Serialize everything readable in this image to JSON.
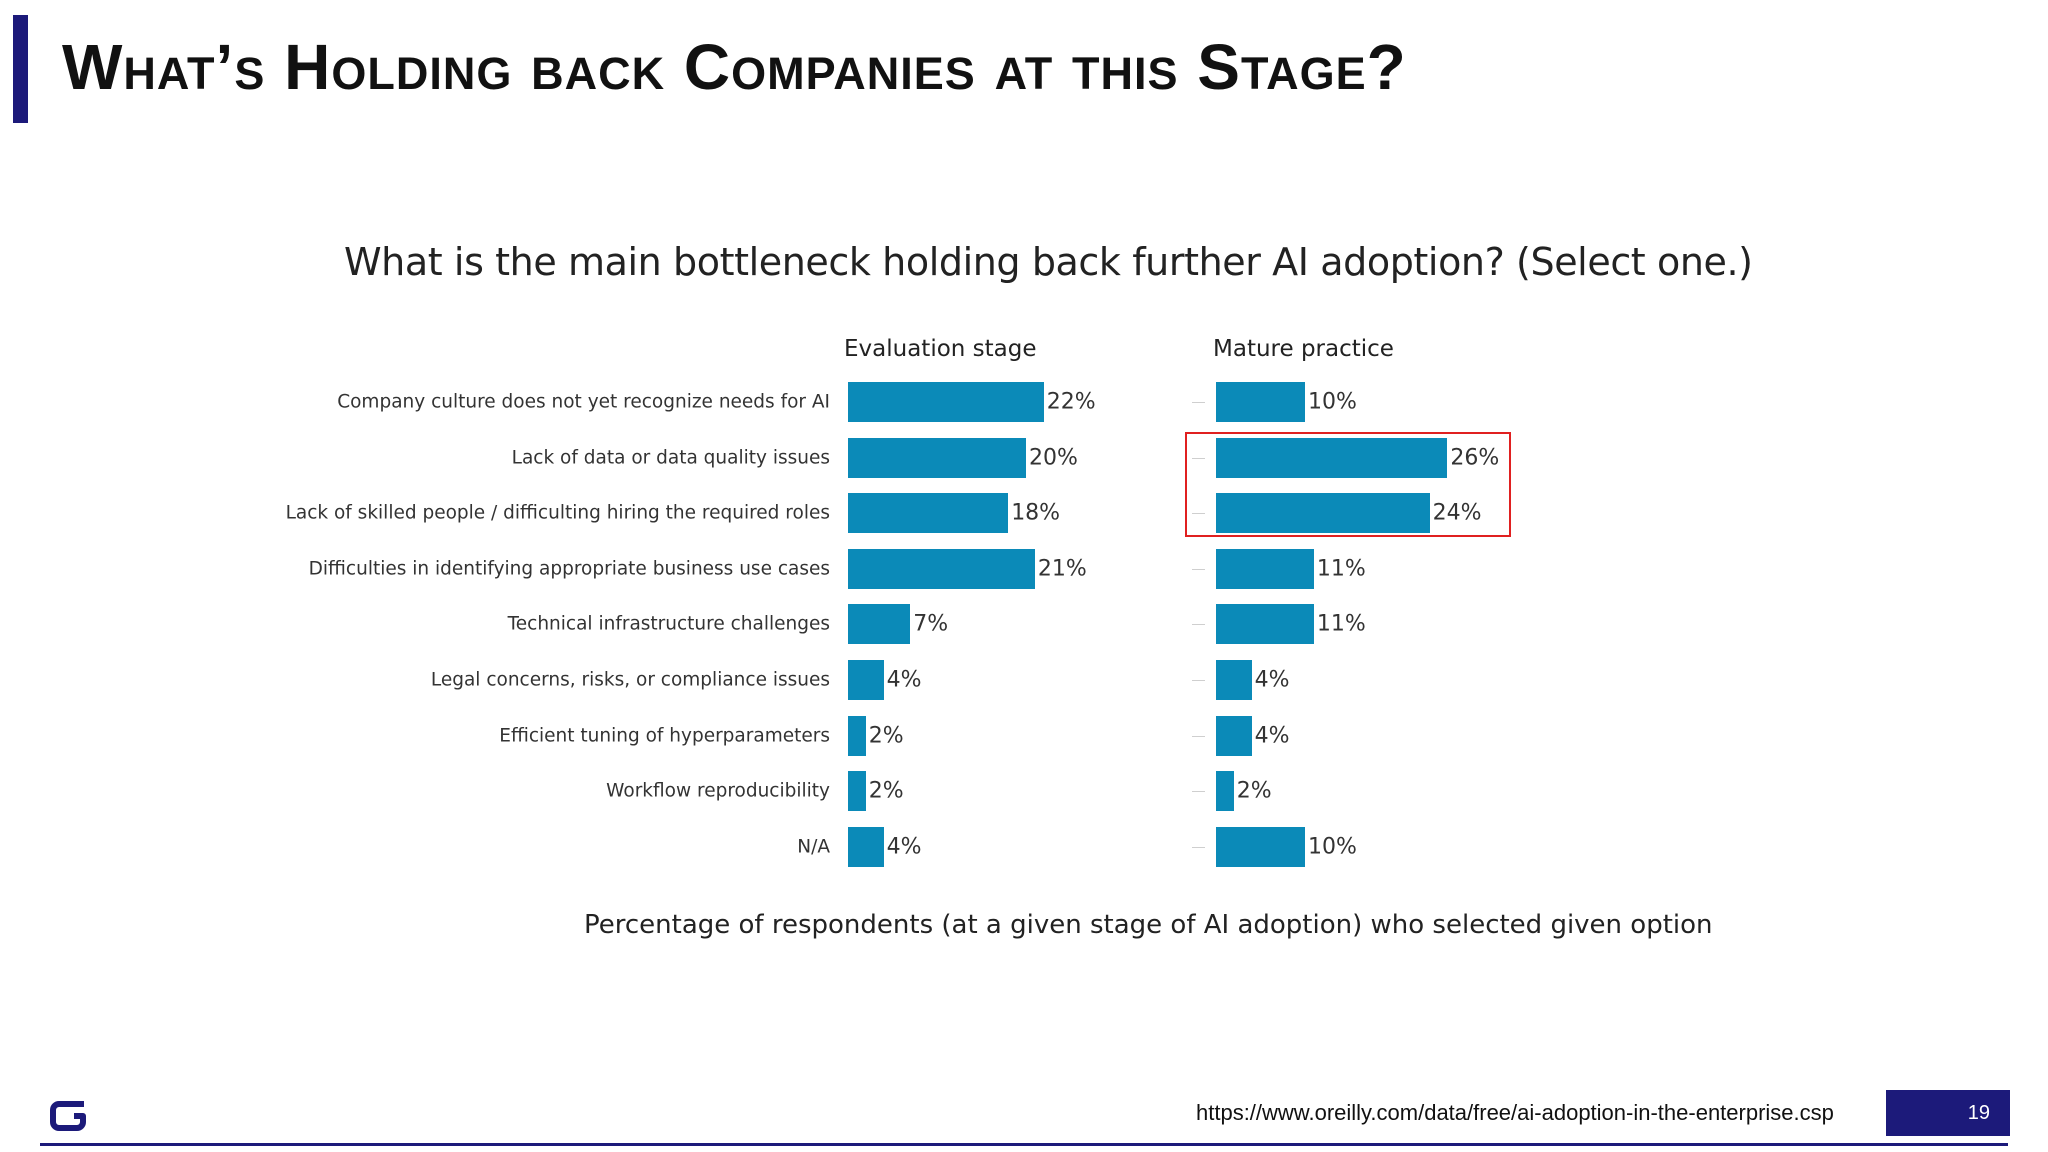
{
  "slide": {
    "title": "What’s Holding back Companies at this Stage?",
    "page_number": "19",
    "source_url": "https://www.oreilly.com/data/free/ai-adoption-in-the-enterprise.csp",
    "logo_icon": "g-logo-icon"
  },
  "colors": {
    "accent": "#1c1a7a",
    "bar": "#0b8ab8",
    "highlight": "#e02020"
  },
  "chart_data": {
    "type": "bar",
    "orientation": "horizontal",
    "title": "What is the main bottleneck holding back further AI adoption?  (Select one.)",
    "caption": "Percentage of respondents (at a given stage of AI adoption) who selected given option",
    "categories": [
      "Company culture does not yet recognize needs for AI",
      "Lack of data or data quality issues",
      "Lack of skilled people / difficulting hiring the required roles",
      "Difficulties in identifying appropriate business use cases",
      "Technical infrastructure challenges",
      "Legal concerns, risks, or compliance issues",
      "Efficient tuning of hyperparameters",
      "Workflow reproducibility",
      "N/A"
    ],
    "series": [
      {
        "name": "Evaluation stage",
        "values": [
          22,
          20,
          18,
          21,
          7,
          4,
          2,
          2,
          4
        ],
        "labels": [
          "22%",
          "20%",
          "18%",
          "21%",
          "7%",
          "4%",
          "2%",
          "2%",
          "4%"
        ]
      },
      {
        "name": "Mature practice",
        "values": [
          10,
          26,
          24,
          11,
          11,
          4,
          4,
          2,
          10
        ],
        "labels": [
          "10%",
          "26%",
          "24%",
          "11%",
          "11%",
          "4%",
          "4%",
          "2%",
          "10%"
        ]
      }
    ],
    "highlighted": {
      "series": "Mature practice",
      "categories": [
        "Lack of data or data quality issues",
        "Lack of skilled people / difficulting hiring the required roles"
      ]
    },
    "grid": false,
    "legend": "none"
  }
}
